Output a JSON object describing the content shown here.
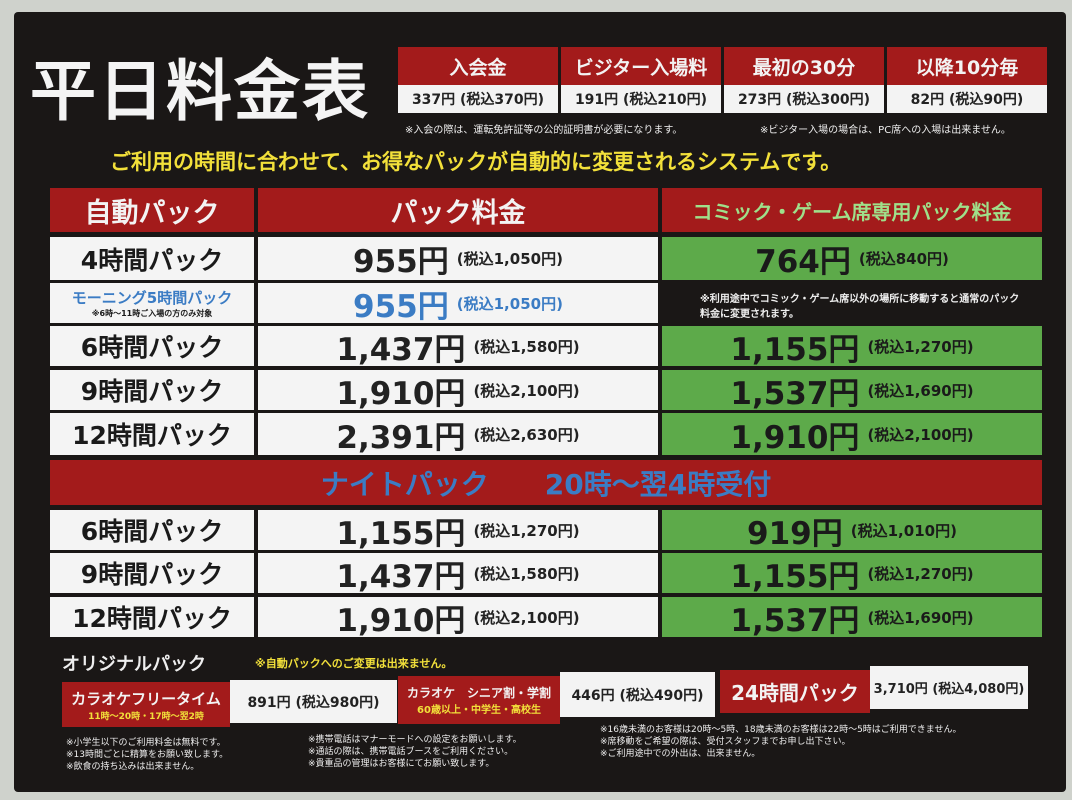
{
  "title": "平日料金表",
  "fees": [
    {
      "label": "入会金",
      "value": "337円 (税込370円)"
    },
    {
      "label": "ビジター入場料",
      "value": "191円 (税込210円)"
    },
    {
      "label": "最初の30分",
      "value": "273円 (税込300円)"
    },
    {
      "label": "以降10分毎",
      "value": "82円 (税込90円)"
    }
  ],
  "fee_notes": [
    "※入会の際は、運転免許証等の公的証明書が必要になります。",
    "※ビジター入場の場合は、PC席への入場は出来ません。"
  ],
  "headline": "ご利用の時間に合わせて、お得なパックが自動的に変更されるシステムです。",
  "table": {
    "headers": [
      "自動パック",
      "パック料金",
      "コミック・ゲーム席専用パック料金"
    ],
    "rows": [
      {
        "label": "4時間パック",
        "price": "955円",
        "tax": "(税込1,050円)",
        "comic": "764円",
        "comic_tax": "(税込840円)"
      },
      {
        "label": "モーニング5時間パック",
        "sub": "※6時〜11時ご入場の方のみ対象",
        "price": "955円",
        "tax": "(税込1,050円)",
        "comic_note": "※利用途中でコミック・ゲーム席以外の場所に移動すると通常のパック料金に変更されます。"
      },
      {
        "label": "6時間パック",
        "price": "1,437円",
        "tax": "(税込1,580円)",
        "comic": "1,155円",
        "comic_tax": "(税込1,270円)"
      },
      {
        "label": "9時間パック",
        "price": "1,910円",
        "tax": "(税込2,100円)",
        "comic": "1,537円",
        "comic_tax": "(税込1,690円)"
      },
      {
        "label": "12時間パック",
        "price": "2,391円",
        "tax": "(税込2,630円)",
        "comic": "1,910円",
        "comic_tax": "(税込2,100円)"
      }
    ],
    "night_header": "ナイトパック　　20時〜翌4時受付",
    "night_rows": [
      {
        "label": "6時間パック",
        "price": "1,155円",
        "tax": "(税込1,270円)",
        "comic": "919円",
        "comic_tax": "(税込1,010円)"
      },
      {
        "label": "9時間パック",
        "price": "1,437円",
        "tax": "(税込1,580円)",
        "comic": "1,155円",
        "comic_tax": "(税込1,270円)"
      },
      {
        "label": "12時間パック",
        "price": "1,910円",
        "tax": "(税込2,100円)",
        "comic": "1,537円",
        "comic_tax": "(税込1,690円)"
      }
    ]
  },
  "original": {
    "title": "オリジナルパック",
    "note": "※自動パックへのご変更は出来ません。",
    "items": [
      {
        "label": "カラオケフリータイム",
        "sub": "11時〜20時・17時〜翌2時",
        "price": "891円 (税込980円)"
      },
      {
        "label": "カラオケ　シニア割・学割",
        "sub": "60歳以上・中学生・高校生",
        "price": "446円 (税込490円)"
      },
      {
        "label": "24時間パック",
        "price": "3,710円 (税込4,080円)"
      }
    ]
  },
  "footer_notes": [
    [
      "※小学生以下のご利用料金は無料です。",
      "※13時間ごとに精算をお願い致します。",
      "※飲食の持ち込みは出来ません。"
    ],
    [
      "※携帯電話はマナーモードへの設定をお願いします。",
      "※通話の際は、携帯電話ブースをご利用ください。",
      "※貴重品の管理はお客様にてお願い致します。"
    ],
    [
      "※16歳未満のお客様は20時〜5時、18歳未満のお客様は22時〜5時はご利用できません。",
      "※席移動をご希望の際は、受付スタッフまでお申し出下さい。",
      "※ご利用途中での外出は、出来ません。"
    ]
  ],
  "colors": {
    "red": "#a31b1b",
    "green": "#5daa4a",
    "blue": "#3b7cc4",
    "yellow": "#f2e03a",
    "board": "#1a1716"
  }
}
